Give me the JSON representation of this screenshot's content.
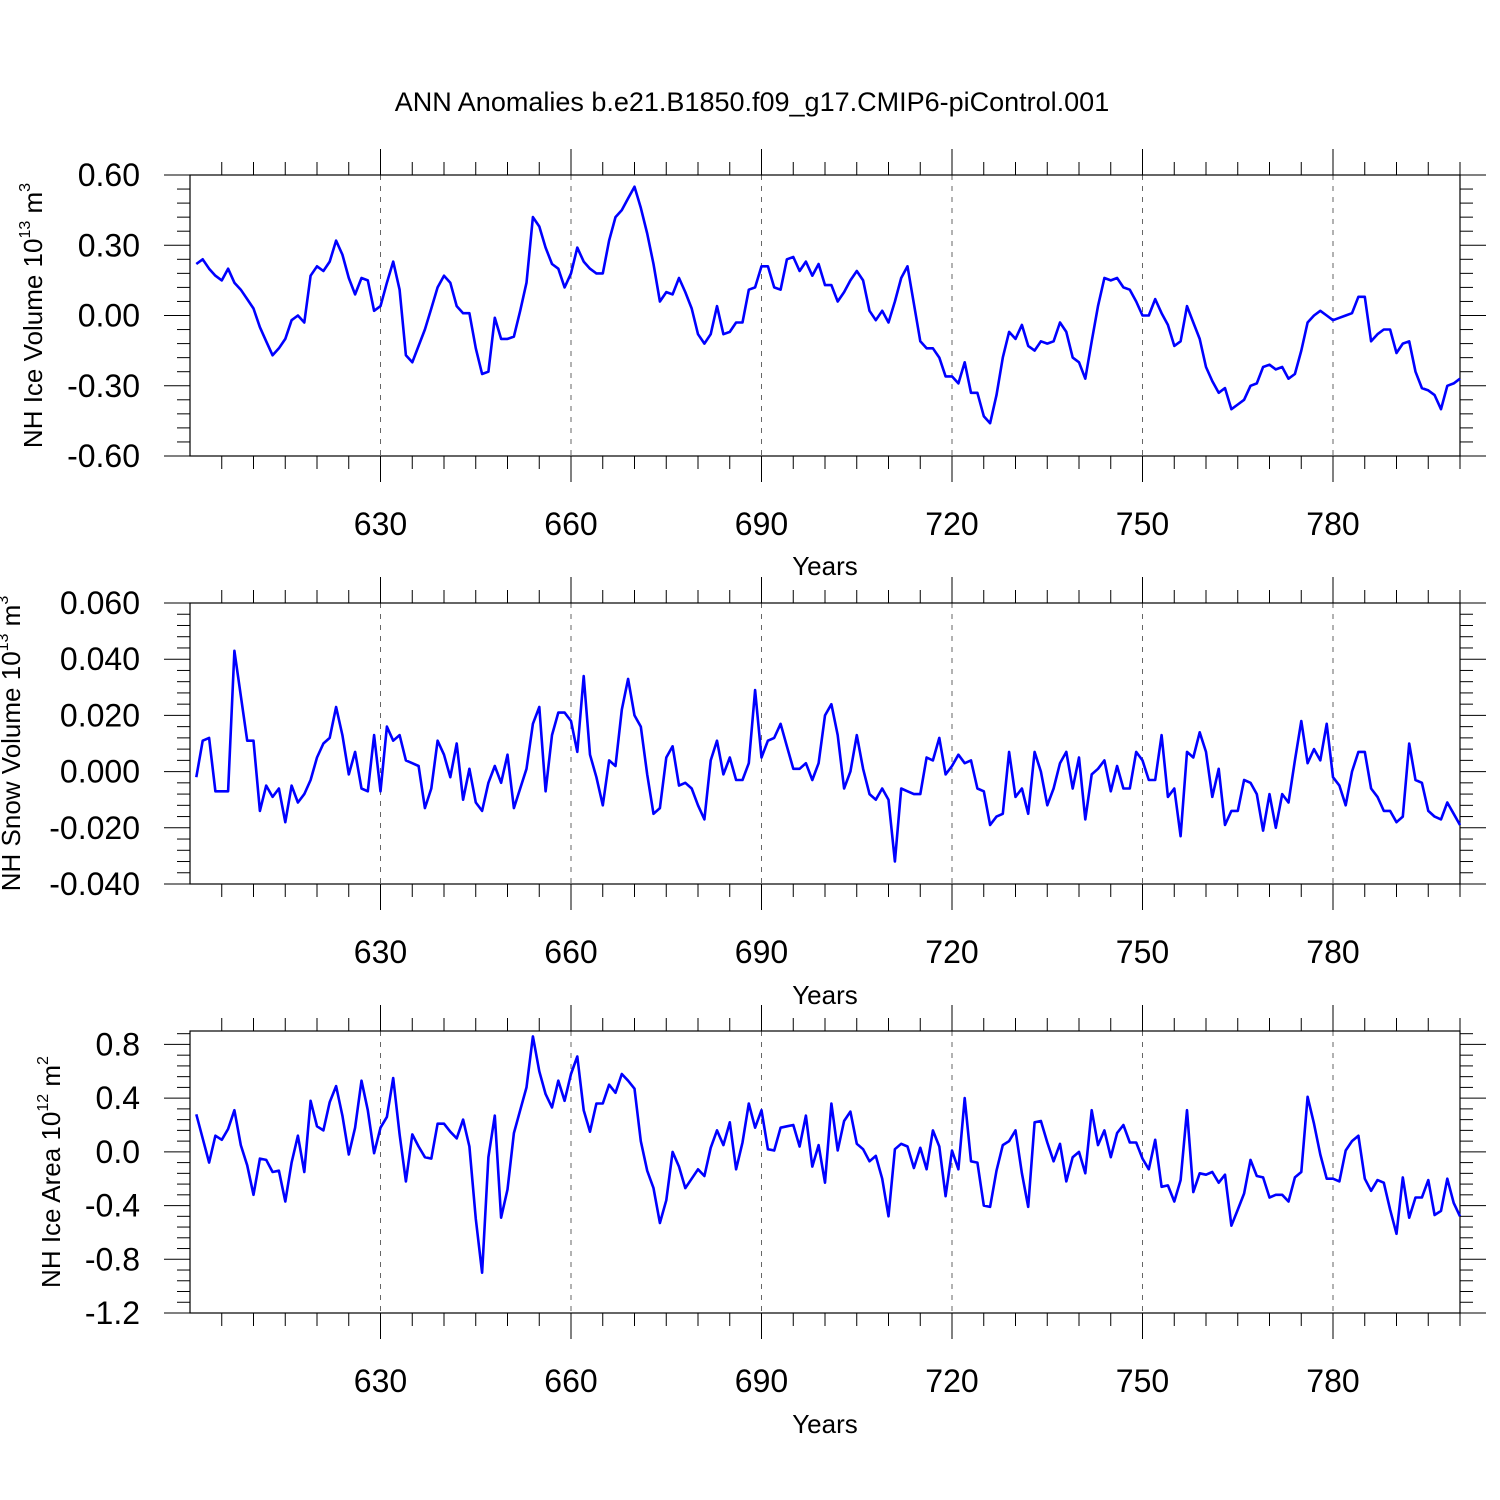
{
  "chart_data": {
    "type": "line",
    "title": "ANN Anomalies b.e21.B1850.f09_g17.CMIP6-piControl.001",
    "line_color": "#0000ff",
    "grid": "vertical dashed at major x ticks",
    "x": [
      601,
      602,
      603,
      604,
      605,
      606,
      607,
      608,
      609,
      610,
      611,
      612,
      613,
      614,
      615,
      616,
      617,
      618,
      619,
      620,
      621,
      622,
      623,
      624,
      625,
      626,
      627,
      628,
      629,
      630,
      631,
      632,
      633,
      634,
      635,
      636,
      637,
      638,
      639,
      640,
      641,
      642,
      643,
      644,
      645,
      646,
      647,
      648,
      649,
      650,
      651,
      652,
      653,
      654,
      655,
      656,
      657,
      658,
      659,
      660,
      661,
      662,
      663,
      664,
      665,
      666,
      667,
      668,
      669,
      670,
      671,
      672,
      673,
      674,
      675,
      676,
      677,
      678,
      679,
      680,
      681,
      682,
      683,
      684,
      685,
      686,
      687,
      688,
      689,
      690,
      691,
      692,
      693,
      694,
      695,
      696,
      697,
      698,
      699,
      700,
      701,
      702,
      703,
      704,
      705,
      706,
      707,
      708,
      709,
      710,
      711,
      712,
      713,
      714,
      715,
      716,
      717,
      718,
      719,
      720,
      721,
      722,
      723,
      724,
      725,
      726,
      727,
      728,
      729,
      730,
      731,
      732,
      733,
      734,
      735,
      736,
      737,
      738,
      739,
      740,
      741,
      742,
      743,
      744,
      745,
      746,
      747,
      748,
      749,
      750,
      751,
      752,
      753,
      754,
      755,
      756,
      757,
      758,
      759,
      760,
      761,
      762,
      763,
      764,
      765,
      766,
      767,
      768,
      769,
      770,
      771,
      772,
      773,
      774,
      775,
      776,
      777,
      778,
      779,
      780,
      781,
      782,
      783,
      784,
      785,
      786,
      787,
      788,
      789,
      790,
      791,
      792,
      793,
      794,
      795,
      796,
      797,
      798,
      799,
      800
    ],
    "panels": [
      {
        "ylabel": "NH Ice Volume 10",
        "ylabel_exp": "13",
        "ylabel_unit": "m",
        "ylabel_unit_exp": "3",
        "xlabel": "Years",
        "ylim": [
          -0.6,
          0.6
        ],
        "yticks": [
          "0.60",
          "0.30",
          "0.00",
          "-0.30",
          "-0.60"
        ],
        "ytick_values": [
          0.6,
          0.3,
          0.0,
          -0.3,
          -0.6
        ],
        "xticks": [
          "630",
          "660",
          "690",
          "720",
          "750",
          "780"
        ],
        "xtick_values": [
          630,
          660,
          690,
          720,
          750,
          780
        ],
        "values": [
          0.22,
          0.24,
          0.2,
          0.17,
          0.15,
          0.2,
          0.14,
          0.11,
          0.07,
          0.03,
          -0.05,
          -0.11,
          -0.17,
          -0.14,
          -0.1,
          -0.02,
          0.0,
          -0.03,
          0.17,
          0.21,
          0.19,
          0.23,
          0.32,
          0.26,
          0.16,
          0.09,
          0.16,
          0.15,
          0.02,
          0.04,
          0.14,
          0.23,
          0.11,
          -0.17,
          -0.2,
          -0.13,
          -0.06,
          0.03,
          0.12,
          0.17,
          0.14,
          0.04,
          0.01,
          0.01,
          -0.14,
          -0.25,
          -0.24,
          -0.01,
          -0.1,
          -0.1,
          -0.09,
          0.02,
          0.14,
          0.42,
          0.38,
          0.29,
          0.22,
          0.2,
          0.12,
          0.18,
          0.29,
          0.23,
          0.2,
          0.18,
          0.18,
          0.32,
          0.42,
          0.45,
          0.5,
          0.55,
          0.46,
          0.35,
          0.22,
          0.06,
          0.1,
          0.09,
          0.16,
          0.1,
          0.03,
          -0.08,
          -0.12,
          -0.08,
          0.04,
          -0.08,
          -0.07,
          -0.03,
          -0.03,
          0.11,
          0.12,
          0.21,
          0.21,
          0.12,
          0.11,
          0.24,
          0.25,
          0.19,
          0.23,
          0.17,
          0.22,
          0.13,
          0.13,
          0.06,
          0.1,
          0.15,
          0.19,
          0.15,
          0.02,
          -0.02,
          0.02,
          -0.03,
          0.06,
          0.16,
          0.21,
          0.05,
          -0.11,
          -0.14,
          -0.14,
          -0.18,
          -0.26,
          -0.26,
          -0.29,
          -0.2,
          -0.33,
          -0.33,
          -0.43,
          -0.46,
          -0.34,
          -0.18,
          -0.07,
          -0.1,
          -0.04,
          -0.13,
          -0.15,
          -0.11,
          -0.12,
          -0.11,
          -0.03,
          -0.07,
          -0.18,
          -0.2,
          -0.27,
          -0.11,
          0.04,
          0.16,
          0.15,
          0.16,
          0.12,
          0.11,
          0.06,
          0.0,
          0.0,
          0.07,
          0.01,
          -0.04,
          -0.13,
          -0.11,
          0.04,
          -0.03,
          -0.1,
          -0.22,
          -0.28,
          -0.33,
          -0.31,
          -0.4,
          -0.38,
          -0.36,
          -0.3,
          -0.29,
          -0.22,
          -0.21,
          -0.23,
          -0.22,
          -0.27,
          -0.25,
          -0.15,
          -0.03,
          0.0,
          0.02,
          0.0,
          -0.02,
          -0.01,
          0.0,
          0.01,
          0.08,
          0.08,
          -0.11,
          -0.08,
          -0.06,
          -0.06,
          -0.16,
          -0.12,
          -0.11,
          -0.24,
          -0.31,
          -0.32,
          -0.34,
          -0.4,
          -0.3,
          -0.29,
          -0.27
        ]
      },
      {
        "ylabel": "NH Snow Volume 10",
        "ylabel_exp": "13",
        "ylabel_unit": "m",
        "ylabel_unit_exp": "3",
        "xlabel": "Years",
        "ylim": [
          -0.04,
          0.06
        ],
        "yticks": [
          "0.060",
          "0.040",
          "0.020",
          "0.000",
          "-0.020",
          "-0.040"
        ],
        "ytick_values": [
          0.06,
          0.04,
          0.02,
          0.0,
          -0.02,
          -0.04
        ],
        "xticks": [
          "630",
          "660",
          "690",
          "720",
          "750",
          "780"
        ],
        "xtick_values": [
          630,
          660,
          690,
          720,
          750,
          780
        ],
        "values": [
          -0.002,
          0.011,
          0.012,
          -0.007,
          -0.007,
          -0.007,
          0.043,
          0.027,
          0.011,
          0.011,
          -0.014,
          -0.005,
          -0.009,
          -0.006,
          -0.018,
          -0.005,
          -0.011,
          -0.008,
          -0.003,
          0.005,
          0.01,
          0.012,
          0.023,
          0.013,
          -0.001,
          0.007,
          -0.006,
          -0.007,
          0.013,
          -0.007,
          0.016,
          0.011,
          0.013,
          0.004,
          0.003,
          0.002,
          -0.013,
          -0.006,
          0.011,
          0.006,
          -0.002,
          0.01,
          -0.01,
          0.001,
          -0.011,
          -0.014,
          -0.004,
          0.002,
          -0.004,
          0.006,
          -0.013,
          -0.006,
          0.001,
          0.017,
          0.023,
          -0.007,
          0.013,
          0.021,
          0.021,
          0.018,
          0.007,
          0.034,
          0.006,
          -0.002,
          -0.012,
          0.004,
          0.002,
          0.022,
          0.033,
          0.02,
          0.016,
          -0.001,
          -0.015,
          -0.013,
          0.005,
          0.009,
          -0.005,
          -0.004,
          -0.006,
          -0.012,
          -0.017,
          0.004,
          0.011,
          -0.001,
          0.005,
          -0.003,
          -0.003,
          0.003,
          0.029,
          0.005,
          0.011,
          0.012,
          0.017,
          0.009,
          0.001,
          0.001,
          0.003,
          -0.003,
          0.003,
          0.02,
          0.024,
          0.013,
          -0.006,
          0.0,
          0.013,
          0.001,
          -0.008,
          -0.01,
          -0.006,
          -0.01,
          -0.032,
          -0.006,
          -0.007,
          -0.008,
          -0.008,
          0.005,
          0.004,
          0.012,
          -0.001,
          0.002,
          0.006,
          0.003,
          0.004,
          -0.006,
          -0.007,
          -0.019,
          -0.016,
          -0.015,
          0.007,
          -0.009,
          -0.006,
          -0.015,
          0.007,
          0.0,
          -0.012,
          -0.006,
          0.003,
          0.007,
          -0.006,
          0.005,
          -0.017,
          -0.001,
          0.001,
          0.004,
          -0.007,
          0.002,
          -0.006,
          -0.006,
          0.007,
          0.004,
          -0.003,
          -0.003,
          0.013,
          -0.009,
          -0.006,
          -0.023,
          0.007,
          0.005,
          0.014,
          0.007,
          -0.009,
          0.001,
          -0.019,
          -0.014,
          -0.014,
          -0.003,
          -0.004,
          -0.008,
          -0.021,
          -0.008,
          -0.02,
          -0.008,
          -0.011,
          0.004,
          0.018,
          0.003,
          0.008,
          0.004,
          0.017,
          -0.002,
          -0.005,
          -0.012,
          0.0,
          0.007,
          0.007,
          -0.006,
          -0.009,
          -0.014,
          -0.014,
          -0.018,
          -0.016,
          0.01,
          -0.003,
          -0.004,
          -0.014,
          -0.016,
          -0.017,
          -0.011,
          -0.015,
          -0.019
        ]
      },
      {
        "ylabel": "NH Ice Area 10",
        "ylabel_exp": "12",
        "ylabel_unit": "m",
        "ylabel_unit_exp": "2",
        "xlabel": "Years",
        "ylim": [
          -1.2,
          0.9
        ],
        "yticks": [
          "0.8",
          "0.4",
          "0.0",
          "-0.4",
          "-0.8",
          "-1.2"
        ],
        "ytick_values": [
          0.8,
          0.4,
          0.0,
          -0.4,
          -0.8,
          -1.2
        ],
        "xticks": [
          "630",
          "660",
          "690",
          "720",
          "750",
          "780"
        ],
        "xtick_values": [
          630,
          660,
          690,
          720,
          750,
          780
        ],
        "values": [
          0.28,
          0.1,
          -0.08,
          0.12,
          0.09,
          0.17,
          0.31,
          0.05,
          -0.1,
          -0.32,
          -0.05,
          -0.06,
          -0.15,
          -0.14,
          -0.37,
          -0.08,
          0.12,
          -0.15,
          0.38,
          0.19,
          0.16,
          0.37,
          0.49,
          0.27,
          -0.02,
          0.18,
          0.53,
          0.31,
          -0.01,
          0.18,
          0.26,
          0.55,
          0.13,
          -0.22,
          0.13,
          0.04,
          -0.04,
          -0.05,
          0.21,
          0.21,
          0.15,
          0.1,
          0.24,
          0.04,
          -0.5,
          -0.9,
          -0.04,
          0.27,
          -0.49,
          -0.28,
          0.14,
          0.31,
          0.48,
          0.86,
          0.6,
          0.43,
          0.33,
          0.53,
          0.38,
          0.58,
          0.71,
          0.31,
          0.15,
          0.36,
          0.36,
          0.5,
          0.44,
          0.58,
          0.53,
          0.47,
          0.08,
          -0.14,
          -0.27,
          -0.53,
          -0.36,
          0.0,
          -0.11,
          -0.27,
          -0.2,
          -0.13,
          -0.18,
          0.03,
          0.16,
          0.05,
          0.22,
          -0.13,
          0.07,
          0.36,
          0.18,
          0.31,
          0.02,
          0.01,
          0.18,
          0.19,
          0.2,
          0.04,
          0.27,
          -0.11,
          0.05,
          -0.23,
          0.36,
          0.01,
          0.23,
          0.3,
          0.06,
          0.02,
          -0.07,
          -0.03,
          -0.2,
          -0.48,
          0.02,
          0.06,
          0.04,
          -0.12,
          0.03,
          -0.13,
          0.16,
          0.04,
          -0.33,
          0.01,
          -0.13,
          0.4,
          -0.07,
          -0.08,
          -0.4,
          -0.41,
          -0.14,
          0.05,
          0.08,
          0.16,
          -0.16,
          -0.41,
          0.22,
          0.23,
          0.07,
          -0.07,
          0.06,
          -0.22,
          -0.04,
          0.0,
          -0.16,
          0.31,
          0.05,
          0.16,
          -0.04,
          0.14,
          0.2,
          0.07,
          0.07,
          -0.05,
          -0.13,
          0.09,
          -0.26,
          -0.25,
          -0.37,
          -0.21,
          0.31,
          -0.3,
          -0.16,
          -0.17,
          -0.15,
          -0.23,
          -0.17,
          -0.55,
          -0.43,
          -0.31,
          -0.06,
          -0.18,
          -0.19,
          -0.34,
          -0.32,
          -0.32,
          -0.37,
          -0.19,
          -0.15,
          0.41,
          0.21,
          -0.02,
          -0.2,
          -0.2,
          -0.22,
          0.01,
          0.08,
          0.12,
          -0.2,
          -0.29,
          -0.21,
          -0.23,
          -0.43,
          -0.61,
          -0.19,
          -0.49,
          -0.34,
          -0.34,
          -0.21,
          -0.47,
          -0.44,
          -0.2,
          -0.38,
          -0.48
        ]
      }
    ]
  }
}
